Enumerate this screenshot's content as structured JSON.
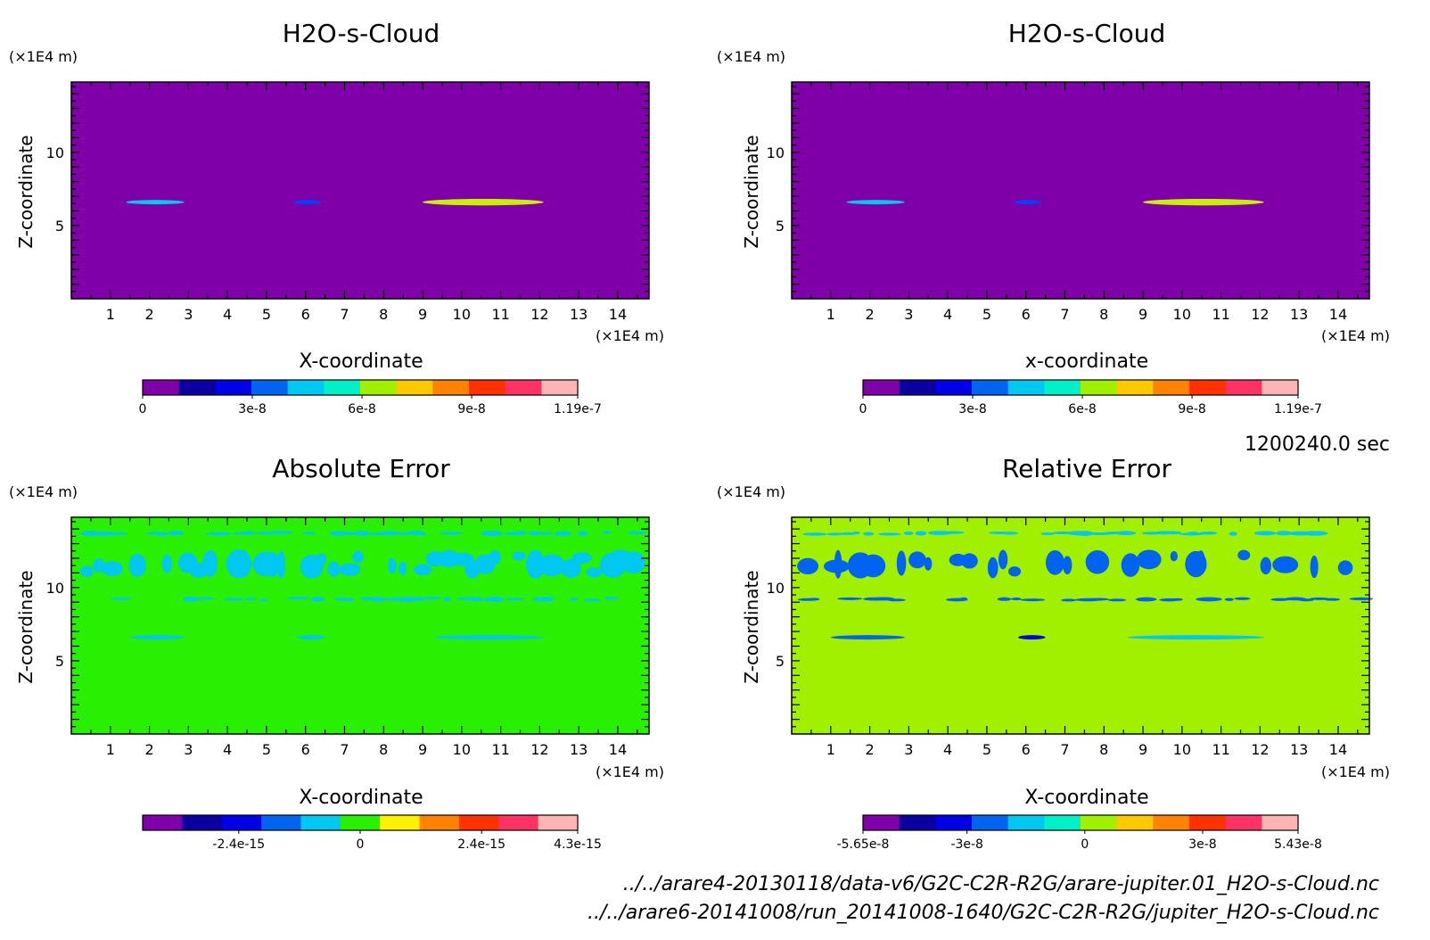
{
  "colors": {
    "background": "#ffffff",
    "frame": "#000000"
  },
  "timestamp": "1200240.0 sec",
  "files": [
    "../../arare4-20130118/data-v6/G2C-C2R-R2G/arare-jupiter.01_H2O-s-Cloud.nc",
    "../../arare6-20141008/run_20141008-1640/G2C-C2R-R2G/jupiter_H2O-s-Cloud.nc"
  ],
  "chart_data": [
    {
      "type": "heatmap",
      "title": "H2O-s-Cloud",
      "xlabel": "X-coordinate",
      "ylabel": "Z-coordinate",
      "x_unit": "(×1E4 m)",
      "y_unit": "(×1E4 m)",
      "xlim": [
        0,
        14.8
      ],
      "ylim": [
        0,
        14.8
      ],
      "x_ticks": [
        1,
        2,
        3,
        4,
        5,
        6,
        7,
        8,
        9,
        10,
        11,
        12,
        13,
        14
      ],
      "y_ticks": [
        5,
        10
      ],
      "background_color": "#7f00a8",
      "features": [
        {
          "x": [
            1.4,
            2.9
          ],
          "z": 6.6,
          "thickness": 0.3,
          "color": "#00c8f0"
        },
        {
          "x": [
            5.7,
            6.4
          ],
          "z": 6.6,
          "thickness": 0.3,
          "color": "#0040ff"
        },
        {
          "x": [
            9.0,
            12.1
          ],
          "z": 6.6,
          "thickness": 0.45,
          "color": "#c8f000"
        }
      ],
      "colorbar": {
        "colors": [
          "#7f00a8",
          "#0a00a0",
          "#0000e6",
          "#0064f0",
          "#00c8f0",
          "#00f0c8",
          "#a0f000",
          "#ffc800",
          "#ff8200",
          "#ff3200",
          "#ff3264",
          "#ffb4b4"
        ],
        "tick_labels": [
          "0",
          "3e-8",
          "6e-8",
          "9e-8",
          "1.19e-7"
        ],
        "range": [
          0,
          1.19e-07
        ]
      }
    },
    {
      "type": "heatmap",
      "title": "H2O-s-Cloud",
      "xlabel": "x-coordinate",
      "ylabel": "Z-coordinate",
      "x_unit": "(×1E4 m)",
      "y_unit": "(×1E4 m)",
      "xlim": [
        0,
        14.8
      ],
      "ylim": [
        0,
        14.8
      ],
      "x_ticks": [
        1,
        2,
        3,
        4,
        5,
        6,
        7,
        8,
        9,
        10,
        11,
        12,
        13,
        14
      ],
      "y_ticks": [
        5,
        10
      ],
      "background_color": "#7f00a8",
      "features": [
        {
          "x": [
            1.4,
            2.9
          ],
          "z": 6.6,
          "thickness": 0.3,
          "color": "#00c8f0"
        },
        {
          "x": [
            5.7,
            6.4
          ],
          "z": 6.6,
          "thickness": 0.3,
          "color": "#0040ff"
        },
        {
          "x": [
            9.0,
            12.1
          ],
          "z": 6.6,
          "thickness": 0.45,
          "color": "#c8f000"
        }
      ],
      "colorbar": {
        "colors": [
          "#7f00a8",
          "#0a00a0",
          "#0000e6",
          "#0064f0",
          "#00c8f0",
          "#00f0c8",
          "#a0f000",
          "#ffc800",
          "#ff8200",
          "#ff3200",
          "#ff3264",
          "#ffb4b4"
        ],
        "tick_labels": [
          "0",
          "3e-8",
          "6e-8",
          "9e-8",
          "1.19e-7"
        ],
        "range": [
          0,
          1.19e-07
        ]
      }
    },
    {
      "type": "heatmap",
      "title": "Absolute Error",
      "xlabel": "X-coordinate",
      "ylabel": "Z-coordinate",
      "x_unit": "(×1E4 m)",
      "y_unit": "(×1E4 m)",
      "xlim": [
        0,
        14.8
      ],
      "ylim": [
        0,
        14.8
      ],
      "x_ticks": [
        1,
        2,
        3,
        4,
        5,
        6,
        7,
        8,
        9,
        10,
        11,
        12,
        13,
        14
      ],
      "y_ticks": [
        5,
        10
      ],
      "background_color": "#28f000",
      "features": [
        {
          "x": [
            0.2,
            14.5
          ],
          "z": 13.7,
          "thickness": 0.35,
          "color": "#00c8f0",
          "pattern": "noise"
        },
        {
          "x": [
            0.1,
            14.4
          ],
          "z": 11.6,
          "thickness": 2.0,
          "color": "#00c8f0",
          "pattern": "noise"
        },
        {
          "x": [
            0.3,
            14.6
          ],
          "z": 9.2,
          "thickness": 0.35,
          "color": "#00c8f0",
          "pattern": "noise"
        },
        {
          "x": [
            1.5,
            2.9
          ],
          "z": 6.6,
          "thickness": 0.3,
          "color": "#00c8f0"
        },
        {
          "x": [
            5.8,
            6.5
          ],
          "z": 6.6,
          "thickness": 0.3,
          "color": "#00c8f0"
        },
        {
          "x": [
            9.3,
            12.1
          ],
          "z": 6.6,
          "thickness": 0.3,
          "color": "#00c8f0"
        }
      ],
      "colorbar": {
        "colors": [
          "#7f00a8",
          "#0a00a0",
          "#0000e6",
          "#0064f0",
          "#00c8f0",
          "#28f000",
          "#fff000",
          "#ff8200",
          "#ff3200",
          "#ff3264",
          "#ffb4b4"
        ],
        "tick_labels": [
          "-2.4e-15",
          "0",
          "2.4e-15",
          "4.3e-15"
        ],
        "range": [
          -4.3e-15,
          4.3e-15
        ]
      }
    },
    {
      "type": "heatmap",
      "title": "Relative Error",
      "xlabel": "X-coordinate",
      "ylabel": "Z-coordinate",
      "x_unit": "(×1E4 m)",
      "y_unit": "(×1E4 m)",
      "xlim": [
        0,
        14.8
      ],
      "ylim": [
        0,
        14.8
      ],
      "x_ticks": [
        1,
        2,
        3,
        4,
        5,
        6,
        7,
        8,
        9,
        10,
        11,
        12,
        13,
        14
      ],
      "y_ticks": [
        5,
        10
      ],
      "background_color": "#a0f000",
      "features": [
        {
          "x": [
            0.2,
            14.6
          ],
          "z": 13.7,
          "thickness": 0.35,
          "color": "#00c8f0",
          "pattern": "noise"
        },
        {
          "x": [
            0.1,
            14.5
          ],
          "z": 11.6,
          "thickness": 2.0,
          "color": "#0064f0",
          "pattern": "noise"
        },
        {
          "x": [
            0.1,
            14.8
          ],
          "z": 9.2,
          "thickness": 0.3,
          "color": "#0064f0",
          "pattern": "noise"
        },
        {
          "x": [
            1.0,
            2.9
          ],
          "z": 6.6,
          "thickness": 0.3,
          "color": "#0064f0"
        },
        {
          "x": [
            5.8,
            6.5
          ],
          "z": 6.6,
          "thickness": 0.3,
          "color": "#0000e6"
        },
        {
          "x": [
            8.6,
            12.1
          ],
          "z": 6.6,
          "thickness": 0.3,
          "color": "#00c8f0"
        }
      ],
      "colorbar": {
        "colors": [
          "#7f00a8",
          "#0a00a0",
          "#0000e6",
          "#0064f0",
          "#00c8f0",
          "#00f0c8",
          "#a0f000",
          "#ffc800",
          "#ff8200",
          "#ff3200",
          "#ff3264",
          "#ffb4b4"
        ],
        "tick_labels": [
          "-5.65e-8",
          "-3e-8",
          "0",
          "3e-8",
          "5.43e-8"
        ],
        "range": [
          -5.65e-08,
          5.43e-08
        ]
      }
    }
  ]
}
